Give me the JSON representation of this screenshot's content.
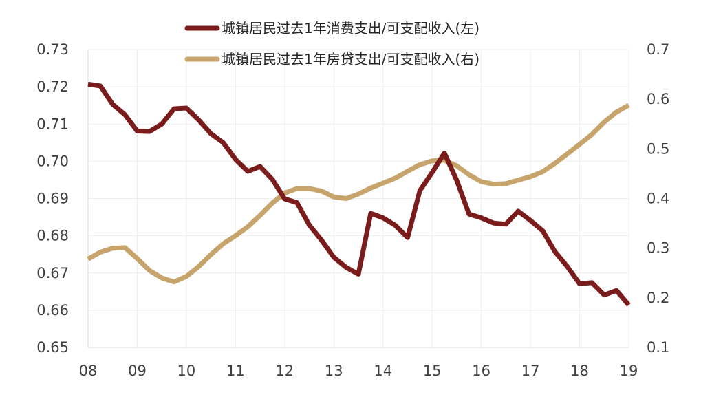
{
  "chart_data": {
    "type": "line",
    "title": "",
    "grid": true,
    "legend_position": "top-center",
    "x": [
      2008.0,
      2008.25,
      2008.5,
      2008.75,
      2009.0,
      2009.25,
      2009.5,
      2009.75,
      2010.0,
      2010.25,
      2010.5,
      2010.75,
      2011.0,
      2011.25,
      2011.5,
      2011.75,
      2012.0,
      2012.25,
      2012.5,
      2012.75,
      2013.0,
      2013.25,
      2013.5,
      2013.75,
      2014.0,
      2014.25,
      2014.5,
      2014.75,
      2015.0,
      2015.25,
      2015.5,
      2015.75,
      2016.0,
      2016.25,
      2016.5,
      2016.75,
      2017.0,
      2017.25,
      2017.5,
      2017.75,
      2018.0,
      2018.25,
      2018.5,
      2018.75,
      2019.0
    ],
    "x_ticks": [
      "08",
      "09",
      "10",
      "11",
      "12",
      "13",
      "14",
      "15",
      "16",
      "17",
      "18",
      "19"
    ],
    "x_tick_values": [
      2008,
      2009,
      2010,
      2011,
      2012,
      2013,
      2014,
      2015,
      2016,
      2017,
      2018,
      2019
    ],
    "xlim": [
      2008,
      2019
    ],
    "y_left": {
      "lim": [
        0.65,
        0.73
      ],
      "ticks": [
        "0.65",
        "0.66",
        "0.67",
        "0.68",
        "0.69",
        "0.70",
        "0.71",
        "0.72",
        "0.73"
      ],
      "tick_values": [
        0.65,
        0.66,
        0.67,
        0.68,
        0.69,
        0.7,
        0.71,
        0.72,
        0.73
      ]
    },
    "y_right": {
      "lim": [
        0.1,
        0.7
      ],
      "ticks": [
        "0.1",
        "0.2",
        "0.3",
        "0.4",
        "0.5",
        "0.6",
        "0.7"
      ],
      "tick_values": [
        0.1,
        0.2,
        0.3,
        0.4,
        0.5,
        0.6,
        0.7
      ]
    },
    "series": [
      {
        "name": "城镇居民过去1年消费支出/可支配收入(左)",
        "axis": "left",
        "color": "#7b1c1c",
        "values": [
          0.7207,
          0.7202,
          0.7153,
          0.7125,
          0.7081,
          0.708,
          0.71,
          0.7141,
          0.7143,
          0.7111,
          0.7074,
          0.705,
          0.7005,
          0.6973,
          0.6986,
          0.6951,
          0.6899,
          0.6889,
          0.6829,
          0.6788,
          0.6742,
          0.6715,
          0.6697,
          0.686,
          0.6848,
          0.6828,
          0.6795,
          0.6921,
          0.697,
          0.7022,
          0.6949,
          0.6858,
          0.6848,
          0.6834,
          0.6831,
          0.6866,
          0.6841,
          0.6813,
          0.6757,
          0.6717,
          0.6671,
          0.6674,
          0.6641,
          0.6653,
          0.6614
        ]
      },
      {
        "name": "城镇居民过去1年房贷支出/可支配收入(右)",
        "axis": "right",
        "color": "#c7a46b",
        "values": [
          0.278,
          0.292,
          0.3,
          0.301,
          0.279,
          0.255,
          0.24,
          0.232,
          0.243,
          0.263,
          0.287,
          0.309,
          0.325,
          0.343,
          0.366,
          0.391,
          0.411,
          0.42,
          0.42,
          0.415,
          0.403,
          0.4,
          0.409,
          0.421,
          0.431,
          0.441,
          0.455,
          0.468,
          0.476,
          0.477,
          0.466,
          0.448,
          0.434,
          0.429,
          0.43,
          0.437,
          0.444,
          0.454,
          0.471,
          0.49,
          0.509,
          0.529,
          0.554,
          0.574,
          0.588
        ]
      }
    ]
  }
}
